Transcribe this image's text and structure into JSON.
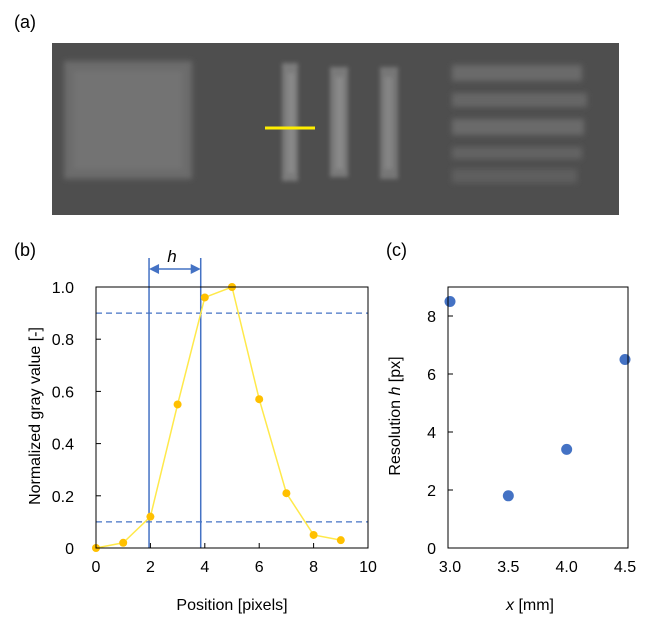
{
  "labels": {
    "a": "(a)",
    "b": "(b)",
    "c": "(c)"
  },
  "image_a": {
    "background": "#4b4b4b",
    "marker_color": "#ffee00"
  },
  "chart_data": [
    {
      "type": "line",
      "panel": "(b)",
      "xlabel": "Position [pixels]",
      "ylabel": "Normalized gray value [-]",
      "xlim": [
        0,
        10
      ],
      "ylim": [
        0,
        1.0
      ],
      "xticks": [
        0,
        2,
        4,
        6,
        8,
        10
      ],
      "yticks": [
        0,
        0.2,
        0.4,
        0.6,
        0.8,
        1.0
      ],
      "yticklabels": [
        "0",
        "0.2",
        "0.4",
        "0.6",
        "0.8",
        "1.0"
      ],
      "series": [
        {
          "color": "#ffc000",
          "line_color": "#ffe94a",
          "x": [
            0,
            1,
            2,
            3,
            4,
            5,
            6,
            7,
            8,
            9
          ],
          "y": [
            0.0,
            0.02,
            0.12,
            0.55,
            0.96,
            1.0,
            0.57,
            0.21,
            0.05,
            0.03
          ]
        }
      ],
      "hlines": [
        0.1,
        0.9
      ],
      "hline_color": "#4472c4",
      "vlines": [
        1.95,
        3.85
      ],
      "vline_color": "#4472c4",
      "annotation": "h"
    },
    {
      "type": "scatter",
      "panel": "(c)",
      "xlabel_var": "x",
      "xlabel_unit": " [mm]",
      "ylabel_pre": "Resolution ",
      "ylabel_var": "h",
      "ylabel_post": " [px]",
      "xlim": [
        3.0,
        4.5
      ],
      "ylim": [
        0,
        9
      ],
      "xticks": [
        3.0,
        3.5,
        4.0,
        4.5
      ],
      "xticklabels": [
        "3.0",
        "3.5",
        "4.0",
        "4.5"
      ],
      "yticks": [
        0,
        2,
        4,
        6,
        8
      ],
      "series": [
        {
          "color": "#4472c4",
          "x": [
            3.0,
            3.5,
            4.0,
            4.5
          ],
          "y": [
            8.5,
            1.8,
            3.4,
            6.5
          ]
        }
      ]
    }
  ]
}
